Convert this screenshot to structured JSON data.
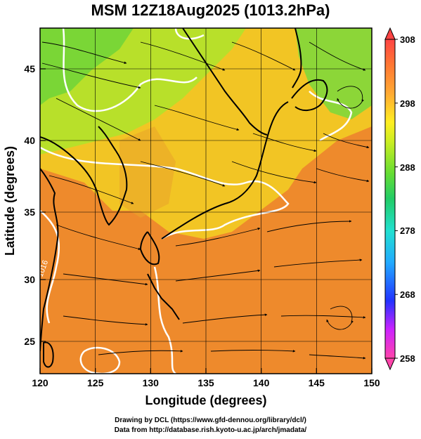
{
  "title": "MSM 12Z18Aug2025 (1013.2hPa)",
  "x_axis": {
    "label": "Longitude (degrees)",
    "ticks": [
      "120",
      "125",
      "130",
      "135",
      "140",
      "145",
      "150"
    ]
  },
  "y_axis": {
    "label": "Latitude  (degrees)",
    "ticks": [
      "25",
      "30",
      "35",
      "40",
      "45"
    ]
  },
  "colorbar": {
    "ticks": [
      "308",
      "298",
      "288",
      "278",
      "268",
      "258"
    ],
    "colors": [
      "#ff44aa",
      "#cc22ff",
      "#2233ff",
      "#22aaff",
      "#22e0d0",
      "#22cc66",
      "#66dd33",
      "#ccee22",
      "#ffee22",
      "#ffaa33",
      "#ff7733",
      "#ff4444"
    ]
  },
  "map": {
    "lon_range": [
      120,
      150
    ],
    "lat_range": [
      22.5,
      47.6
    ],
    "contour_label": "1016",
    "colors": {
      "warm": "#ee8a2c",
      "mild": "#f0c020",
      "cool": "#9ad832",
      "green": "#4fd038",
      "coast": "#000000",
      "contour": "#ffffff",
      "streamline": "#000000"
    }
  },
  "credits": {
    "line1": "Drawing by DCL (https://www.gfd-dennou.org/library/dcl/)",
    "line2": "Data from http://database.rish.kyoto-u.ac.jp/arch/jmadata/"
  }
}
